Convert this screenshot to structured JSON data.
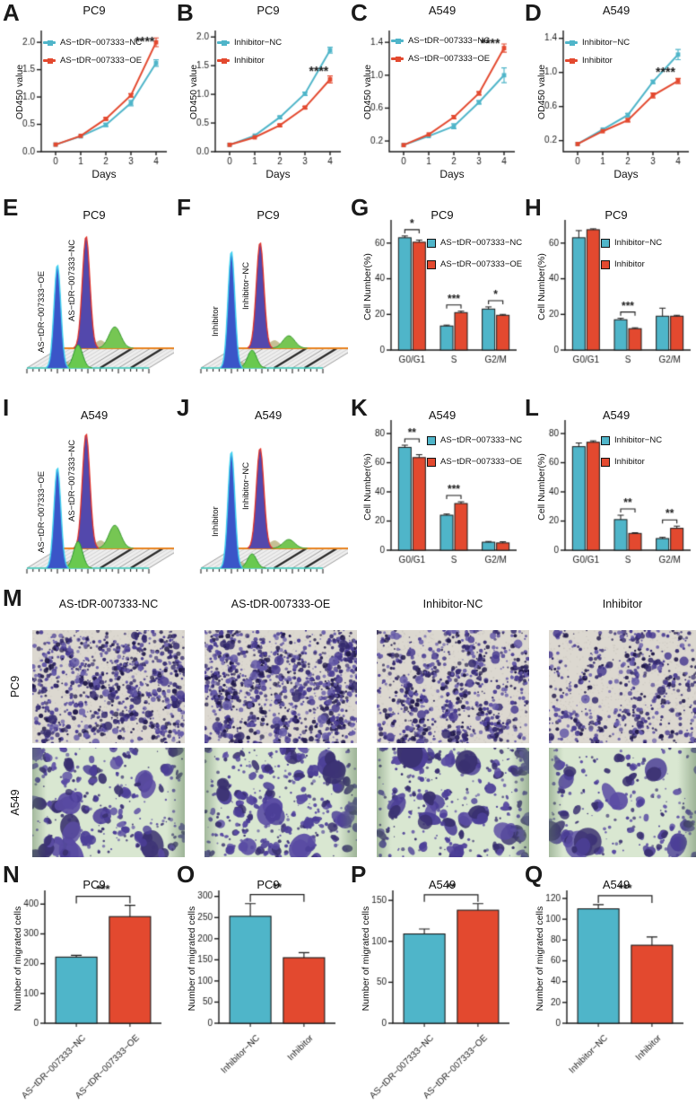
{
  "figure": {
    "colors": {
      "blue": "#4fb5c9",
      "red": "#e3492f",
      "green": "#6cc24f",
      "purple": "#5348ac",
      "orange": "#e8821e",
      "cyan": "#3fd2f0",
      "axis": "#1a1a1a"
    }
  },
  "chart_data": [
    {
      "panel": "A",
      "type": "line",
      "title": "PC9",
      "xlabel": "Days",
      "ylabel": "OD450 value",
      "x": [
        0,
        1,
        2,
        3,
        4
      ],
      "ylim": [
        0,
        2.15
      ],
      "yticks": [
        0,
        0.5,
        1,
        1.5,
        2
      ],
      "ytick_labels": [
        "0.0",
        "0.5",
        "1.0",
        "1.5",
        "2.0"
      ],
      "series": [
        {
          "name": "AS−tDR−007333−NC",
          "color": "blue",
          "values": [
            0.13,
            0.28,
            0.49,
            0.89,
            1.62
          ],
          "errors": [
            0.01,
            0.01,
            0.03,
            0.05,
            0.06
          ]
        },
        {
          "name": "AS−tDR−007333−OE",
          "color": "red",
          "values": [
            0.13,
            0.29,
            0.6,
            1.03,
            2.0
          ],
          "errors": [
            0.01,
            0.01,
            0.02,
            0.03,
            0.08
          ]
        }
      ],
      "sig": {
        "label": "****",
        "x": 3.55,
        "y": 2.04
      }
    },
    {
      "panel": "B",
      "type": "line",
      "title": "PC9",
      "xlabel": "Days",
      "ylabel": "OD450 value",
      "x": [
        0,
        1,
        2,
        3,
        4
      ],
      "ylim": [
        0,
        2.05
      ],
      "yticks": [
        0,
        0.5,
        1,
        1.5,
        2
      ],
      "ytick_labels": [
        "0.0",
        "0.5",
        "1.0",
        "1.5",
        "2.0"
      ],
      "series": [
        {
          "name": "Inhibitor−NC",
          "color": "blue",
          "values": [
            0.12,
            0.28,
            0.6,
            1.01,
            1.77
          ],
          "errors": [
            0.01,
            0.01,
            0.02,
            0.03,
            0.05
          ]
        },
        {
          "name": "Inhibitor",
          "color": "red",
          "values": [
            0.12,
            0.25,
            0.46,
            0.77,
            1.26
          ],
          "errors": [
            0.01,
            0.01,
            0.02,
            0.02,
            0.06
          ]
        }
      ],
      "sig": {
        "label": "****",
        "x": 3.55,
        "y": 1.42
      }
    },
    {
      "panel": "C",
      "type": "line",
      "title": "A549",
      "xlabel": "Days",
      "ylabel": "OD450 value",
      "x": [
        0,
        1,
        2,
        3,
        4
      ],
      "ylim": [
        0.07,
        1.5
      ],
      "yticks": [
        0.2,
        0.6,
        1.0,
        1.4
      ],
      "ytick_labels": [
        "0.2",
        "0.6",
        "1.0",
        "1.4"
      ],
      "series": [
        {
          "name": "AS−tDR−007333−NC",
          "color": "blue",
          "values": [
            0.15,
            0.26,
            0.38,
            0.67,
            1.0
          ],
          "errors": [
            0.01,
            0.01,
            0.03,
            0.02,
            0.09
          ]
        },
        {
          "name": "AS−tDR−007333−OE",
          "color": "red",
          "values": [
            0.15,
            0.28,
            0.49,
            0.78,
            1.33
          ],
          "errors": [
            0.01,
            0.01,
            0.02,
            0.02,
            0.05
          ]
        }
      ],
      "sig": {
        "label": "****",
        "x": 3.45,
        "y": 1.4
      }
    },
    {
      "panel": "D",
      "type": "line",
      "title": "A549",
      "xlabel": "Days",
      "ylabel": "OD450 value",
      "x": [
        0,
        1,
        2,
        3,
        4
      ],
      "ylim": [
        0.07,
        1.45
      ],
      "yticks": [
        0.2,
        0.6,
        1.0,
        1.4
      ],
      "ytick_labels": [
        "0.2",
        "0.6",
        "1.0",
        "1.4"
      ],
      "series": [
        {
          "name": "Inhibitor−NC",
          "color": "blue",
          "values": [
            0.16,
            0.33,
            0.5,
            0.89,
            1.21
          ],
          "errors": [
            0.01,
            0.01,
            0.02,
            0.02,
            0.06
          ]
        },
        {
          "name": "Inhibitor",
          "color": "red",
          "values": [
            0.16,
            0.31,
            0.44,
            0.73,
            0.9
          ],
          "errors": [
            0.01,
            0.01,
            0.02,
            0.03,
            0.03
          ]
        }
      ],
      "sig": {
        "label": "****",
        "x": 3.5,
        "y": 1.02
      }
    },
    {
      "panel": "E",
      "type": "area",
      "subtype": "flow-cytometry-cell-cycle",
      "title": "PC9",
      "series": [
        {
          "name": "AS−tDR−007333−OE",
          "position": "front"
        },
        {
          "name": "AS−tDR−007333−NC",
          "position": "back"
        }
      ],
      "peaks": {
        "front_g1": 115,
        "back_g1": 125,
        "front_g2": 26,
        "back_g2": 24
      }
    },
    {
      "panel": "F",
      "type": "area",
      "subtype": "flow-cytometry-cell-cycle",
      "title": "PC9",
      "series": [
        {
          "name": "Inhibitor",
          "position": "front"
        },
        {
          "name": "Inhibitor−NC",
          "position": "back"
        }
      ],
      "peaks": {
        "front_g1": 130,
        "back_g1": 118,
        "front_g2": 20,
        "back_g2": 14
      }
    },
    {
      "panel": "G",
      "type": "bar",
      "title": "PC9",
      "ylabel": "Cell Number(%)",
      "categories": [
        "G0/G1",
        "S",
        "G2/M"
      ],
      "ylim": [
        0,
        72
      ],
      "yticks": [
        0,
        20,
        40,
        60
      ],
      "series": [
        {
          "name": "AS−tDR−007333−NC",
          "color": "blue",
          "values": [
            63,
            13.5,
            23
          ],
          "errors": [
            1,
            0.5,
            1.2
          ]
        },
        {
          "name": "AS−tDR−007333−OE",
          "color": "red",
          "values": [
            60.5,
            21,
            19.5
          ],
          "errors": [
            1.2,
            0.8,
            0.5
          ]
        }
      ],
      "sig": [
        {
          "cat": 0,
          "label": "*"
        },
        {
          "cat": 1,
          "label": "***"
        },
        {
          "cat": 2,
          "label": "*"
        }
      ]
    },
    {
      "panel": "H",
      "type": "bar",
      "title": "PC9",
      "ylabel": "Cell Number(%)",
      "categories": [
        "G0/G1",
        "S",
        "G2/M"
      ],
      "ylim": [
        0,
        72
      ],
      "yticks": [
        0,
        20,
        40,
        60
      ],
      "series": [
        {
          "name": "Inhibitor−NC",
          "color": "blue",
          "values": [
            63,
            17,
            19
          ],
          "errors": [
            4,
            0.8,
            4.5
          ]
        },
        {
          "name": "Inhibitor",
          "color": "red",
          "values": [
            67.5,
            12,
            19
          ],
          "errors": [
            0.5,
            0.5,
            0.5
          ]
        }
      ],
      "sig": [
        {
          "cat": 1,
          "label": "***"
        }
      ]
    },
    {
      "panel": "I",
      "type": "area",
      "subtype": "flow-cytometry-cell-cycle",
      "title": "A549",
      "series": [
        {
          "name": "AS−tDR−007333−OE",
          "position": "front"
        },
        {
          "name": "AS−tDR−007333−NC",
          "position": "back"
        }
      ],
      "peaks": {
        "front_g1": 112,
        "back_g1": 128,
        "front_g2": 30,
        "back_g2": 26
      }
    },
    {
      "panel": "J",
      "type": "area",
      "subtype": "flow-cytometry-cell-cycle",
      "title": "A549",
      "series": [
        {
          "name": "Inhibitor",
          "position": "front"
        },
        {
          "name": "Inhibitor−NC",
          "position": "back"
        }
      ],
      "peaks": {
        "front_g1": 130,
        "back_g1": 112,
        "front_g2": 16,
        "back_g2": 10
      }
    },
    {
      "panel": "K",
      "type": "bar",
      "title": "A549",
      "ylabel": "Cell Number(%)",
      "categories": [
        "G0/G1",
        "S",
        "G2/M"
      ],
      "ylim": [
        0,
        88
      ],
      "yticks": [
        0,
        20,
        40,
        60,
        80
      ],
      "series": [
        {
          "name": "AS−tDR−007333−NC",
          "color": "blue",
          "values": [
            70.5,
            24,
            5.5
          ],
          "errors": [
            1.5,
            0.8,
            0.5
          ]
        },
        {
          "name": "AS−tDR−007333−OE",
          "color": "red",
          "values": [
            63.5,
            32,
            5
          ],
          "errors": [
            2,
            1.2,
            0.8
          ]
        }
      ],
      "sig": [
        {
          "cat": 0,
          "label": "**"
        },
        {
          "cat": 1,
          "label": "***"
        }
      ]
    },
    {
      "panel": "L",
      "type": "bar",
      "title": "A549",
      "ylabel": "Cell Number(%)",
      "categories": [
        "G0/G1",
        "S",
        "G2/M"
      ],
      "ylim": [
        0,
        88
      ],
      "yticks": [
        0,
        20,
        40,
        60,
        80
      ],
      "series": [
        {
          "name": "Inhibitor−NC",
          "color": "blue",
          "values": [
            71,
            21,
            8
          ],
          "errors": [
            2.5,
            3,
            0.8
          ]
        },
        {
          "name": "Inhibitor",
          "color": "red",
          "values": [
            74,
            11.5,
            15
          ],
          "errors": [
            1,
            0.5,
            1.5
          ]
        }
      ],
      "sig": [
        {
          "cat": 1,
          "label": "**"
        },
        {
          "cat": 2,
          "label": "**"
        }
      ]
    },
    {
      "panel": "N",
      "type": "bar",
      "title": "PC9",
      "ylabel": "Number of migrated cells",
      "ylim": [
        0,
        440
      ],
      "yticks": [
        0,
        100,
        200,
        300,
        400
      ],
      "bars": [
        {
          "label": "AS−tDR−007333−NC",
          "color": "blue",
          "value": 222,
          "error": 6
        },
        {
          "label": "AS−tDR−007333−OE",
          "color": "red",
          "value": 358,
          "error": 38
        }
      ],
      "sig": "***"
    },
    {
      "panel": "O",
      "type": "bar",
      "title": "PC9",
      "ylabel": "Number of migrated cells",
      "ylim": [
        0,
        310
      ],
      "yticks": [
        0,
        50,
        100,
        150,
        200,
        250,
        300
      ],
      "bars": [
        {
          "label": "Inhibitor−NC",
          "color": "blue",
          "value": 253,
          "error": 30
        },
        {
          "label": "Inhibitor",
          "color": "red",
          "value": 155,
          "error": 12
        }
      ],
      "sig": "**"
    },
    {
      "panel": "P",
      "type": "bar",
      "title": "A549",
      "ylabel": "Number of migrated cells",
      "ylim": [
        0,
        160
      ],
      "yticks": [
        0,
        50,
        100,
        150
      ],
      "bars": [
        {
          "label": "AS−tDR−007333−NC",
          "color": "blue",
          "value": 109,
          "error": 6
        },
        {
          "label": "AS−tDR−007333−OE",
          "color": "red",
          "value": 138,
          "error": 8
        }
      ],
      "sig": "**"
    },
    {
      "panel": "Q",
      "type": "bar",
      "title": "A549",
      "ylabel": "Number of migrated cells",
      "ylim": [
        0,
        126
      ],
      "yticks": [
        0,
        20,
        40,
        60,
        80,
        100,
        120
      ],
      "bars": [
        {
          "label": "Inhibitor−NC",
          "color": "blue",
          "value": 110,
          "error": 4
        },
        {
          "label": "Inhibitor",
          "color": "red",
          "value": 75,
          "error": 8
        }
      ],
      "sig": "***"
    }
  ],
  "micrographs": {
    "panel": "M",
    "col_labels": [
      "AS-tDR-007333-NC",
      "AS-tDR-007333-OE",
      "Inhibitor-NC",
      "Inhibitor"
    ],
    "row_labels": [
      "PC9",
      "A549"
    ],
    "cells": [
      {
        "row": "PC9",
        "col": 0,
        "style": "pc9",
        "density": 520,
        "seed": 11
      },
      {
        "row": "PC9",
        "col": 1,
        "style": "pc9",
        "density": 680,
        "seed": 12
      },
      {
        "row": "PC9",
        "col": 2,
        "style": "pc9",
        "density": 460,
        "seed": 13
      },
      {
        "row": "PC9",
        "col": 3,
        "style": "pc9",
        "density": 310,
        "seed": 14
      },
      {
        "row": "A549",
        "col": 0,
        "style": "a549",
        "density": 150,
        "seed": 21
      },
      {
        "row": "A549",
        "col": 1,
        "style": "a549",
        "density": 190,
        "seed": 22
      },
      {
        "row": "A549",
        "col": 2,
        "style": "a549",
        "density": 155,
        "seed": 23
      },
      {
        "row": "A549",
        "col": 3,
        "style": "a549",
        "density": 105,
        "seed": 24
      }
    ]
  }
}
